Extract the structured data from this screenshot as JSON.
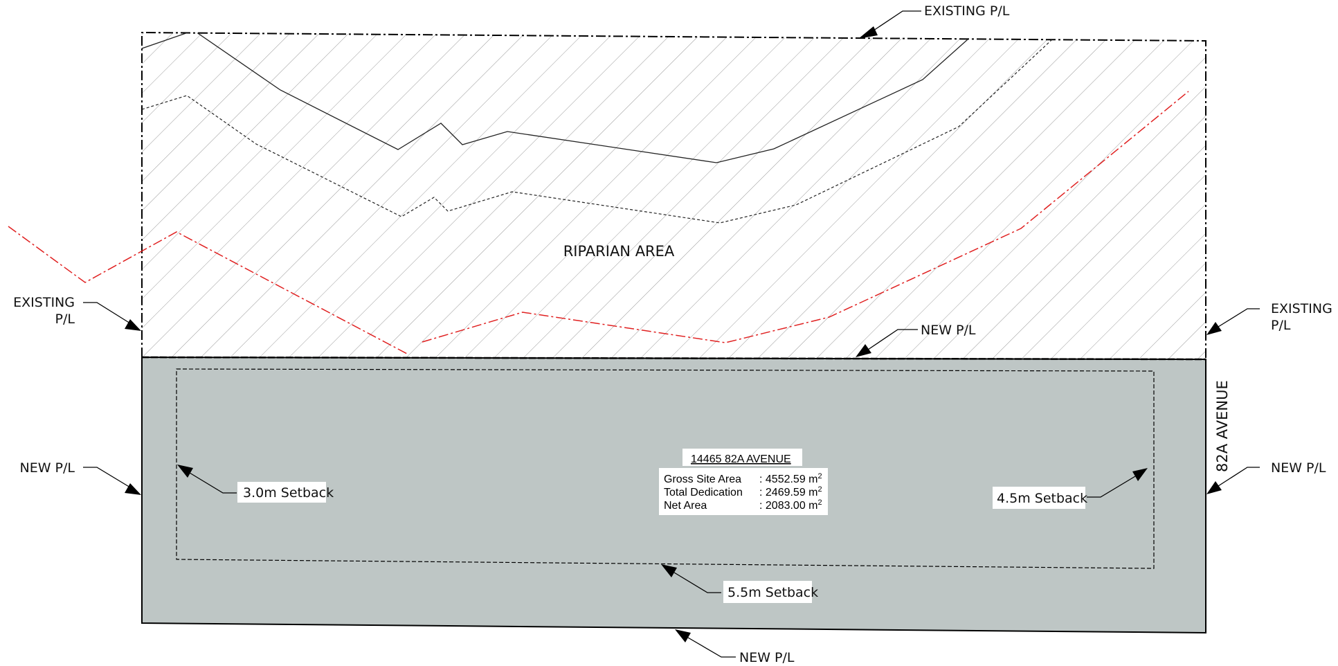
{
  "labels": {
    "existing_pl_top": "EXISTING P/L",
    "existing_left_line1": "EXISTING",
    "existing_left_line2": "P/L",
    "existing_right_line1": "EXISTING",
    "existing_right_line2": "P/L",
    "new_pl_mid": "NEW P/L",
    "new_pl_left": "NEW P/L",
    "new_pl_right": "NEW P/L",
    "new_pl_bottom": "NEW P/L",
    "riparian_area": "RIPARIAN AREA",
    "street_name": "82A AVENUE",
    "setback_left": "3.0m Setback",
    "setback_right": "4.5m  Setback",
    "setback_bottom": "5.5m Setback"
  },
  "site_info": {
    "address": "14465 82A AVENUE",
    "rows": [
      {
        "label": "Gross Site Area",
        "value": ": 4552.59 m",
        "unit_sup": "2"
      },
      {
        "label": "Total Dedication",
        "value": ": 2469.59 m",
        "unit_sup": "2"
      },
      {
        "label": "Net Area",
        "value": ": 2083.00 m",
        "unit_sup": "2"
      }
    ]
  },
  "colors": {
    "site_fill": "#bec6c5",
    "hatch": "#9a9a9a",
    "riparian_boundary": "#e02020",
    "lines": "#000000",
    "label_box": "#ffffff"
  }
}
